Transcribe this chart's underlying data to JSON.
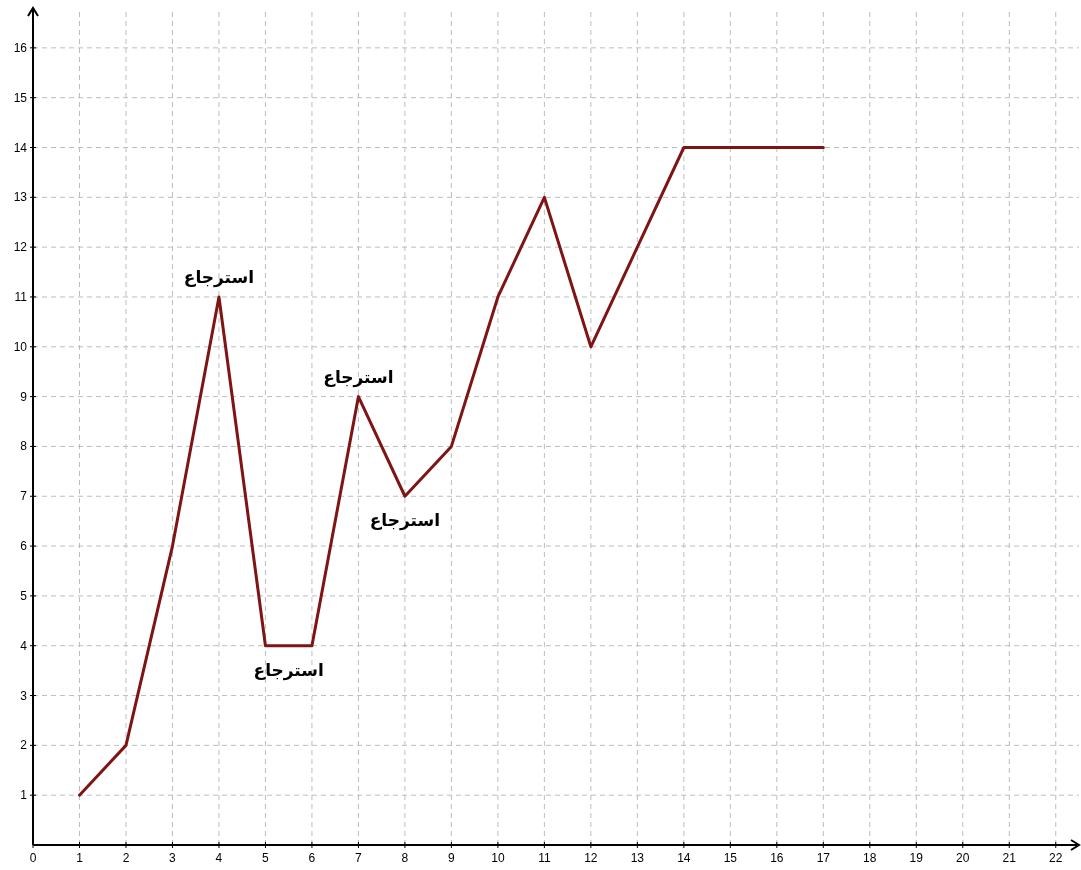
{
  "chart_data": {
    "type": "line",
    "x": [
      1,
      2,
      3,
      4,
      5,
      6,
      7,
      8,
      9,
      10,
      11,
      12,
      13,
      14,
      15,
      16,
      17
    ],
    "series": [
      {
        "color": "#7f1414",
        "values": [
          1,
          2,
          6,
          11,
          4,
          4,
          9,
          7,
          8,
          11,
          13,
          10,
          12,
          14,
          14,
          14,
          14
        ]
      }
    ],
    "xlim": [
      0,
      22.5
    ],
    "ylim": [
      0,
      16.8
    ],
    "xticks": [
      0,
      1,
      2,
      3,
      4,
      5,
      6,
      7,
      8,
      9,
      10,
      11,
      12,
      13,
      14,
      15,
      16,
      17,
      18,
      19,
      20,
      21,
      22
    ],
    "yticks": [
      1,
      2,
      3,
      4,
      5,
      6,
      7,
      8,
      9,
      10,
      11,
      12,
      13,
      14,
      15,
      16
    ],
    "grid": true,
    "line_style": "solid",
    "annotations": [
      {
        "text": "استرجاع",
        "x": 4,
        "y": 11
      },
      {
        "text": "استرجاع",
        "x": 5.5,
        "y": 4
      },
      {
        "text": "استرجاع",
        "x": 7,
        "y": 9
      },
      {
        "text": "استرجاع",
        "x": 8,
        "y": 7
      }
    ]
  }
}
